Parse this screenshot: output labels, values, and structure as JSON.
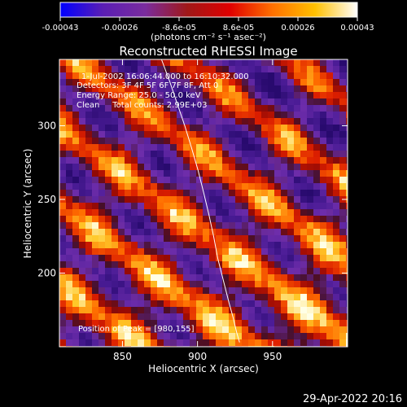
{
  "chart_data": {
    "type": "heatmap",
    "title": "Reconstructed RHESSI Image",
    "xlabel": "Heliocentric X (arcsec)",
    "ylabel": "Heliocentric Y (arcsec)",
    "xlim": [
      808,
      1000
    ],
    "ylim": [
      150,
      345
    ],
    "x_ticks": [
      850,
      900,
      950
    ],
    "y_ticks": [
      200,
      250,
      300
    ],
    "colorbar": {
      "range": [
        -0.00043,
        0.00043
      ],
      "tick_labels": [
        "-0.00043",
        "-0.00026",
        "-8.6e-05",
        "8.6e-05",
        "0.00026",
        "0.00043"
      ],
      "unit_label": "(photons cm⁻² s⁻¹ asec⁻²)",
      "stops": [
        "#0000ff",
        "#5a1eb4",
        "#7a2c9e",
        "#a01818",
        "#e00000",
        "#ff7000",
        "#ffc000",
        "#ffffff"
      ]
    },
    "annotations": [
      "1-Jul-2002 16:06:44.000 to 16:10:32.000",
      "Detectors: 3F 4F 5F 6F 7F 8F, Att 0",
      "Energy Range: 25.0 - 50.0 keV",
      "Clean     Total counts: 2.99E+03"
    ],
    "peak_label": "Position of Peak = [980,155]",
    "limb_curve": {
      "x": [
        876.0,
        881.5,
        886.5,
        891.5,
        896.0,
        900.3,
        904.0,
        907.5,
        910.7,
        913.5,
        916.0,
        918.5,
        921.0,
        923.7,
        926.0,
        928.0
      ],
      "y": [
        345.0,
        330.0,
        315.0,
        300.0,
        285.0,
        270.0,
        255.0,
        240.0,
        225.0,
        210.0,
        200.0,
        190.0,
        180.0,
        170.0,
        160.0,
        153.0
      ]
    }
  },
  "footer": {
    "date": "29-Apr-2022 20:16"
  }
}
